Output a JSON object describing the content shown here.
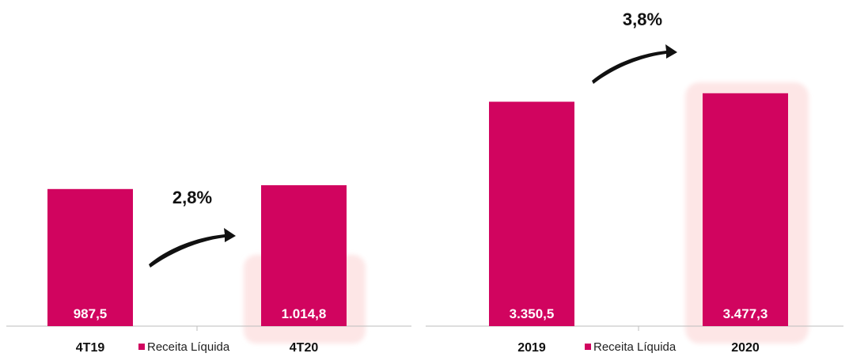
{
  "colors": {
    "bar": "#d1045f",
    "highlight": "#fde6e6",
    "axis": "#bdbdbd",
    "arrow": "#111111"
  },
  "chart_data": [
    {
      "type": "bar",
      "categories": [
        "4T19",
        "4T20"
      ],
      "series": [
        {
          "name": "Receita Líquida",
          "values": [
            987.5,
            1014.8
          ]
        }
      ],
      "value_labels": [
        "987,5",
        "1.014,8"
      ],
      "growth_label": "2,8%",
      "highlighted_category": "4T20",
      "legend": {
        "label": "Receita Líquida",
        "position": "bottom-center"
      },
      "ylim": [
        0,
        1300
      ],
      "grid": false
    },
    {
      "type": "bar",
      "categories": [
        "2019",
        "2020"
      ],
      "series": [
        {
          "name": "Receita Líquida",
          "values": [
            3350.5,
            3477.3
          ]
        }
      ],
      "value_labels": [
        "3.350,5",
        "3.477,3"
      ],
      "growth_label": "3,8%",
      "highlighted_category": "2020",
      "legend": {
        "label": "Receita Líquida",
        "position": "bottom-center"
      },
      "ylim": [
        0,
        5000
      ],
      "grid": false
    }
  ]
}
